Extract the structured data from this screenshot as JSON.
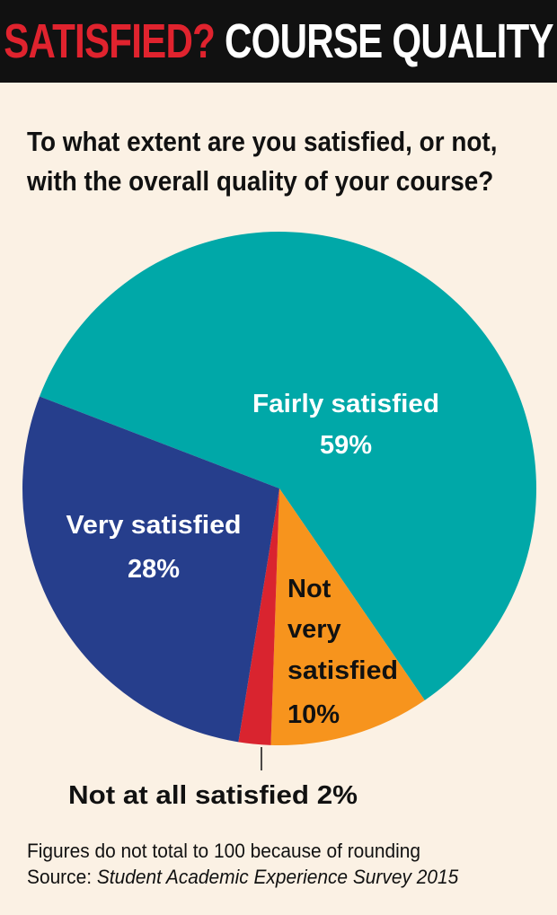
{
  "header": {
    "accent_text": "SATISFIED?",
    "main_text": "COURSE QUALITY"
  },
  "question": {
    "line1": "To what extent are you satisfied, or not,",
    "line2": "with the overall quality of your course?"
  },
  "chart_data": {
    "type": "pie",
    "slices": [
      {
        "label": "Fairly satisfied",
        "value": 59,
        "value_text": "59%",
        "color": "#00a8a8"
      },
      {
        "label": "Not very satisfied",
        "value": 10,
        "value_text": "10%",
        "color": "#f7941d"
      },
      {
        "label": "Not at all satisfied",
        "value": 2,
        "value_text": "2%",
        "color": "#d9242f"
      },
      {
        "label": "Very satisfied",
        "value": 28,
        "value_text": "28%",
        "color": "#263e8c"
      }
    ],
    "labels": {
      "fairly_line1": "Fairly satisfied",
      "fairly_line2": "59%",
      "very_line1": "Very satisfied",
      "very_line2": "28%",
      "notvery_line1": "Not",
      "notvery_line2": "very",
      "notvery_line3": "satisfied",
      "notvery_line4": "10%",
      "notatall": "Not at all satisfied 2%"
    }
  },
  "footnote": {
    "line1": "Figures do not total to 100 because of rounding",
    "source_prefix": "Source: ",
    "source_title": "Student Academic Experience Survey 2015"
  },
  "colors": {
    "background": "#fbf1e4",
    "header_bg": "#111111",
    "accent": "#e0232e"
  }
}
